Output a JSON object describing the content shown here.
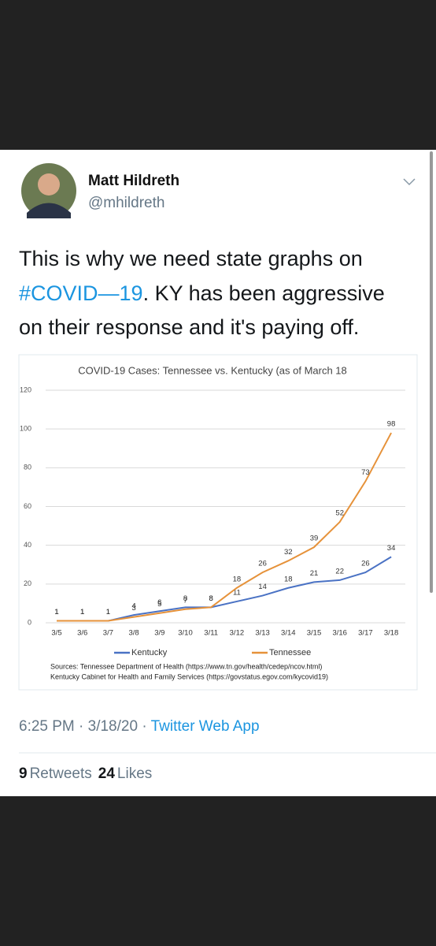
{
  "tweet": {
    "name": "Matt Hildreth",
    "handle": "@mhildreth",
    "text": {
      "line1": "This is why we need state graphs on",
      "hashtag": "#COVID—19",
      "line2": ". KY has been aggressive",
      "line3": "on their response and it's paying off."
    },
    "time": "6:25 PM · 3/18/20 · ",
    "source": "Twitter Web App",
    "retweets": "9",
    "retweets_label": "Retweets",
    "likes": "24",
    "likes_label": "Likes"
  },
  "chart_data": {
    "type": "line",
    "title": "COVID-19 Cases: Tennessee vs. Kentucky (as of March 18",
    "categories": [
      "3/5",
      "3/6",
      "3/7",
      "3/8",
      "3/9",
      "3/10",
      "3/11",
      "3/12",
      "3/13",
      "3/14",
      "3/15",
      "3/16",
      "3/17",
      "3/18"
    ],
    "series": [
      {
        "name": "Kentucky",
        "color": "#4a72c4",
        "values": [
          1,
          1,
          1,
          4,
          6,
          8,
          8,
          11,
          14,
          18,
          21,
          22,
          26,
          34
        ]
      },
      {
        "name": "Tennessee",
        "color": "#e6923a",
        "values": [
          1,
          1,
          1,
          3,
          5,
          7,
          8,
          18,
          26,
          32,
          39,
          52,
          73,
          98
        ]
      }
    ],
    "ylim": [
      0,
      120
    ],
    "yticks": [
      0,
      20,
      40,
      60,
      80,
      100,
      120
    ],
    "grid": true,
    "legend": "bottom",
    "sources": [
      "Sources: Tennessee Department of Health (https://www.tn.gov/health/cedep/ncov.html)",
      "Kentucky Cabinet for Health and Family Services (https://govstatus.egov.com/kycovid19)"
    ]
  }
}
